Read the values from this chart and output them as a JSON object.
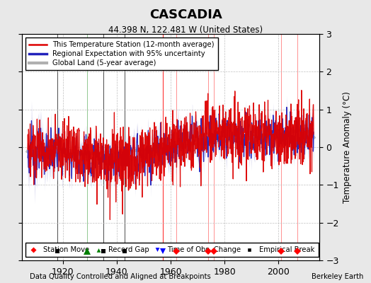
{
  "title": "CASCADIA",
  "subtitle": "44.398 N, 122.481 W (United States)",
  "xlabel_bottom": "Data Quality Controlled and Aligned at Breakpoints",
  "xlabel_right": "Berkeley Earth",
  "ylabel": "Temperature Anomaly (°C)",
  "xlim": [
    1905,
    2015
  ],
  "ylim": [
    -3,
    3
  ],
  "yticks": [
    -3,
    -2,
    -1,
    0,
    1,
    2,
    3
  ],
  "xticks": [
    1920,
    1940,
    1960,
    1980,
    2000
  ],
  "background_color": "#e8e8e8",
  "plot_bg_color": "#ffffff",
  "grid_color": "#c0c0c0",
  "station_line_color": "#dd0000",
  "regional_line_color": "#2222bb",
  "regional_fill_color": "#aaaadd",
  "global_line_color": "#b0b0b0",
  "marker_events": {
    "station_moves": [
      1962,
      1974,
      1976,
      2001,
      2007
    ],
    "record_gaps": [
      1929
    ],
    "obs_changes": [
      1957
    ],
    "empirical_breaks": [
      1918,
      1935,
      1943
    ]
  },
  "seed": 123
}
